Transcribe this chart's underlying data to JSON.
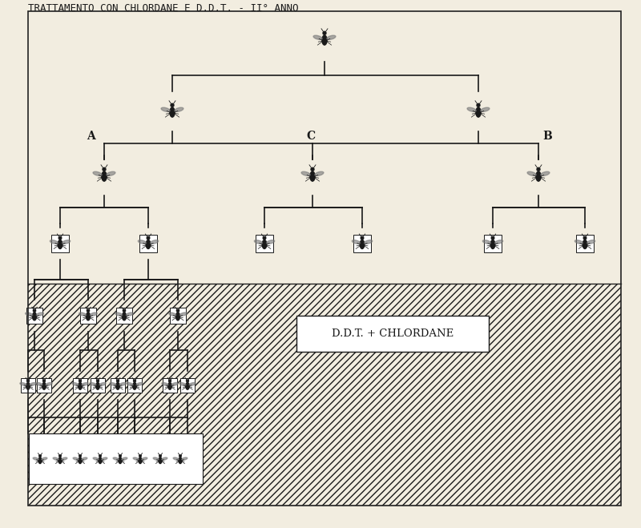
{
  "title": "TRATTAMENTO CON CHLORDANE E D.D.T. - II° ANNO",
  "bg_color": "#f2ede0",
  "line_color": "#1a1a1a",
  "hatch_pattern": "////",
  "label_A": "A",
  "label_B": "B",
  "label_C": "C",
  "ddt_label": "D.D.T. + CHLORDANE",
  "border_color": "#222222"
}
